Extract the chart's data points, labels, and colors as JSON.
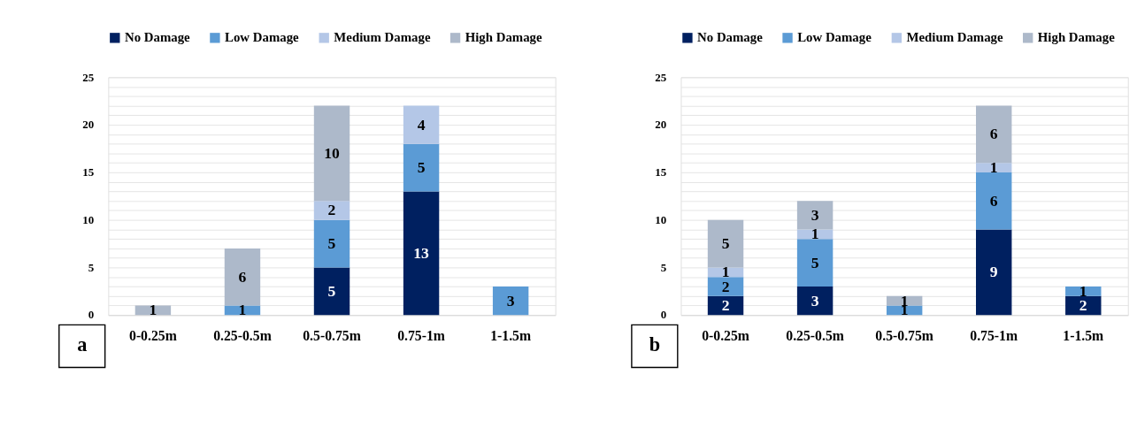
{
  "chart_data": [
    {
      "type": "bar",
      "stacked": true,
      "categories": [
        "0-0.25m",
        "0.25-0.5m",
        "0.5-0.75m",
        "0.75-1m",
        "1-1.5m"
      ],
      "series": [
        {
          "name": "No Damage",
          "color": "#002060",
          "values": [
            null,
            null,
            5,
            13,
            null
          ]
        },
        {
          "name": "Low Damage",
          "color": "#5b9bd5",
          "values": [
            null,
            1,
            5,
            5,
            3
          ]
        },
        {
          "name": "Medium Damage",
          "color": "#b4c7e7",
          "values": [
            null,
            null,
            2,
            4,
            null
          ]
        },
        {
          "name": "High Damage",
          "color": "#adb9ca",
          "values": [
            1,
            6,
            10,
            null,
            null
          ]
        }
      ],
      "ylim": [
        0,
        25
      ],
      "yticks": [
        0,
        {
          "value": 1,
          "label": null
        },
        {
          "value": 2,
          "label": null
        },
        {
          "value": 3,
          "label": null
        },
        {
          "value": 4,
          "label": null
        },
        5,
        {
          "value": 6,
          "label": null
        },
        {
          "value": 7,
          "label": null
        },
        {
          "value": 8,
          "label": null
        },
        {
          "value": 9,
          "label": null
        },
        10,
        {
          "value": 11,
          "label": null
        },
        {
          "value": 12,
          "label": null
        },
        {
          "value": 13,
          "label": null
        },
        {
          "value": 14,
          "label": null
        },
        15,
        {
          "value": 16,
          "label": null
        },
        {
          "value": 17,
          "label": null
        },
        {
          "value": 18,
          "label": null
        },
        {
          "value": 19,
          "label": null
        },
        20,
        {
          "value": 21,
          "label": null
        },
        {
          "value": 22,
          "label": null
        },
        {
          "value": 23,
          "label": null
        },
        {
          "value": 24,
          "label": null
        },
        25
      ],
      "grid": "y",
      "legend": "top",
      "data_labels": true,
      "annotations": [
        "a"
      ]
    },
    {
      "type": "bar",
      "stacked": true,
      "categories": [
        "0-0.25m",
        "0.25-0.5m",
        "0.5-0.75m",
        "0.75-1m",
        "1-1.5m"
      ],
      "series": [
        {
          "name": "No Damage",
          "color": "#002060",
          "values": [
            2,
            3,
            null,
            9,
            2
          ]
        },
        {
          "name": "Low Damage",
          "color": "#5b9bd5",
          "values": [
            2,
            5,
            1,
            6,
            1
          ]
        },
        {
          "name": "Medium Damage",
          "color": "#b4c7e7",
          "values": [
            1,
            1,
            null,
            1,
            null
          ]
        },
        {
          "name": "High Damage",
          "color": "#adb9ca",
          "values": [
            5,
            3,
            1,
            6,
            null
          ]
        }
      ],
      "ylim": [
        0,
        25
      ],
      "yticks": [
        0,
        {
          "value": 1,
          "label": null
        },
        {
          "value": 2,
          "label": null
        },
        {
          "value": 3,
          "label": null
        },
        {
          "value": 4,
          "label": null
        },
        5,
        {
          "value": 6,
          "label": null
        },
        {
          "value": 7,
          "label": null
        },
        {
          "value": 8,
          "label": null
        },
        {
          "value": 9,
          "label": null
        },
        10,
        {
          "value": 11,
          "label": null
        },
        {
          "value": 12,
          "label": null
        },
        {
          "value": 13,
          "label": null
        },
        {
          "value": 14,
          "label": null
        },
        15,
        {
          "value": 16,
          "label": null
        },
        {
          "value": 17,
          "label": null
        },
        {
          "value": 18,
          "label": null
        },
        {
          "value": 19,
          "label": null
        },
        20,
        {
          "value": 21,
          "label": null
        },
        {
          "value": 22,
          "label": null
        },
        {
          "value": 23,
          "label": null
        },
        {
          "value": 24,
          "label": null
        },
        25
      ],
      "grid": "y",
      "legend": "top",
      "data_labels": true,
      "annotations": [
        "b"
      ]
    }
  ]
}
